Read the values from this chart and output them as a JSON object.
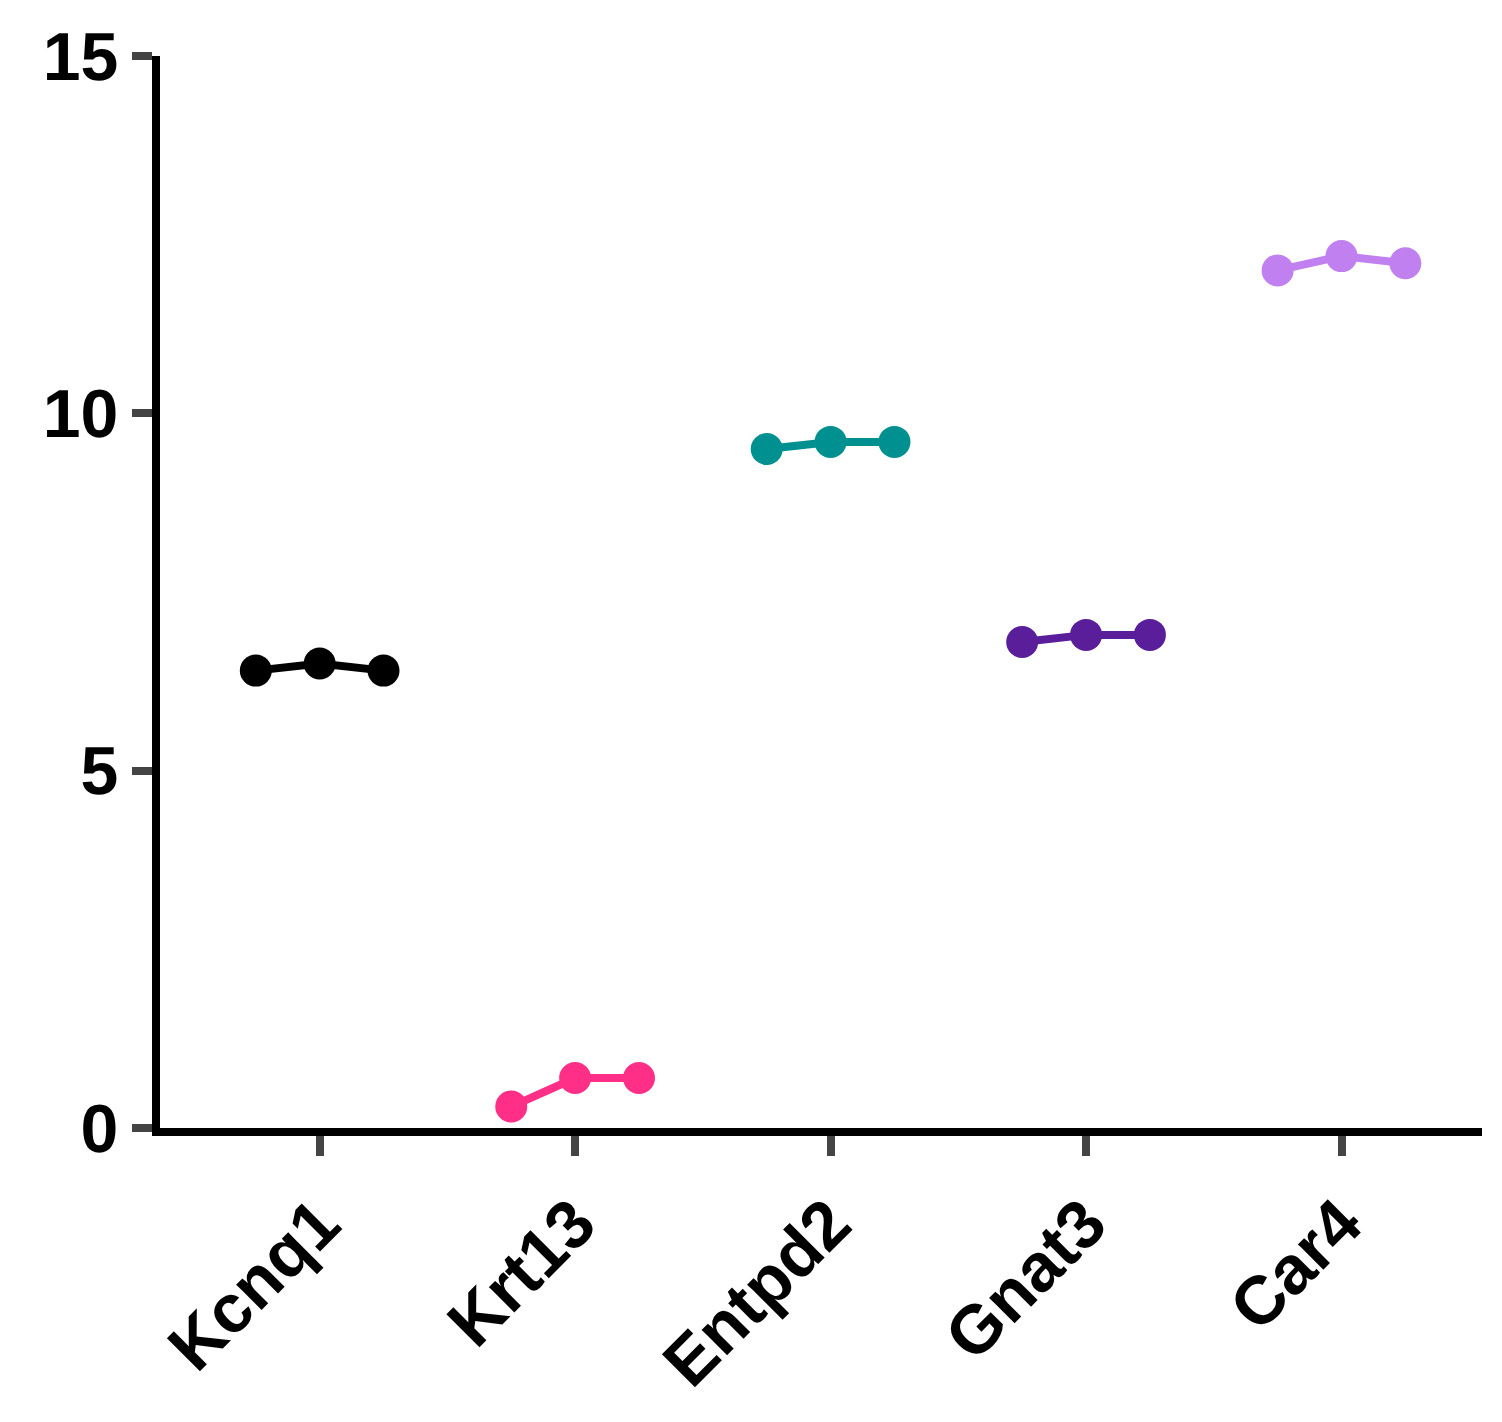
{
  "chart_data": {
    "type": "line",
    "categories": [
      null,
      "Kcnq1",
      null,
      null,
      null,
      "Krt13",
      null,
      null,
      null,
      "Entpd2",
      null,
      null,
      null,
      "Gnat3",
      null,
      null,
      null,
      "Car4",
      null
    ],
    "ylim": [
      0,
      15
    ],
    "yticks": [
      0,
      5,
      10,
      15
    ],
    "legend": false,
    "marker": "circle",
    "line_style": "solid",
    "series": [
      {
        "color": "#000000",
        "values": [
          6.4,
          6.5,
          6.4,
          null,
          null,
          null,
          null,
          null,
          null,
          null,
          null,
          null,
          null,
          null,
          null,
          null,
          null,
          null,
          null
        ]
      },
      {
        "color": "#ff2e86",
        "values": [
          null,
          null,
          null,
          null,
          0.3,
          0.7,
          0.7,
          null,
          null,
          null,
          null,
          null,
          null,
          null,
          null,
          null,
          null,
          null,
          null
        ]
      },
      {
        "color": "#009090",
        "values": [
          null,
          null,
          null,
          null,
          null,
          null,
          null,
          null,
          9.5,
          9.6,
          9.6,
          null,
          null,
          null,
          null,
          null,
          null,
          null,
          null
        ]
      },
      {
        "color": "#5a1e9a",
        "values": [
          null,
          null,
          null,
          null,
          null,
          null,
          null,
          null,
          null,
          null,
          null,
          null,
          6.8,
          6.9,
          6.9,
          null,
          null,
          null,
          null
        ]
      },
      {
        "color": "#c080f0",
        "values": [
          null,
          null,
          null,
          null,
          null,
          null,
          null,
          null,
          null,
          null,
          null,
          null,
          null,
          null,
          null,
          null,
          12.0,
          12.2,
          12.1
        ]
      }
    ]
  }
}
